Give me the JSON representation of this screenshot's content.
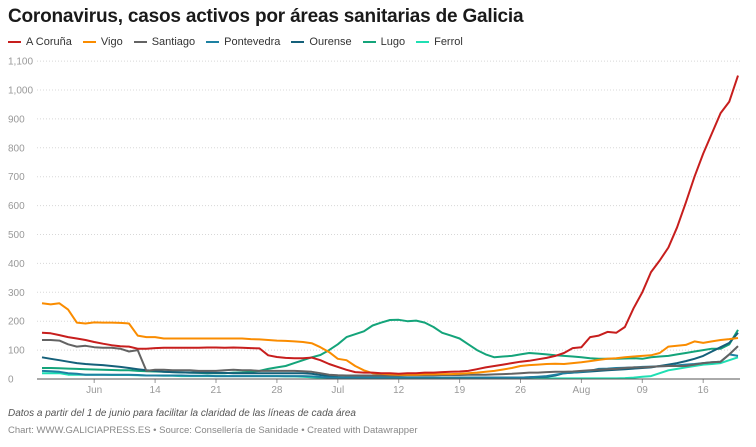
{
  "chart_data": {
    "type": "line",
    "title": "Coronavirus, casos activos por áreas sanitarias de Galicia",
    "x_start": "2020-06-01",
    "x_end": "2020-08-20",
    "x_ticks": [
      {
        "date": "2020-06-07",
        "label": "Jun"
      },
      {
        "date": "2020-06-14",
        "label": "14"
      },
      {
        "date": "2020-06-21",
        "label": "21"
      },
      {
        "date": "2020-06-28",
        "label": "28"
      },
      {
        "date": "2020-07-05",
        "label": "Jul"
      },
      {
        "date": "2020-07-12",
        "label": "12"
      },
      {
        "date": "2020-07-19",
        "label": "19"
      },
      {
        "date": "2020-07-26",
        "label": "26"
      },
      {
        "date": "2020-08-02",
        "label": "Aug"
      },
      {
        "date": "2020-08-09",
        "label": "09"
      },
      {
        "date": "2020-08-16",
        "label": "16"
      }
    ],
    "y_ticks": [
      {
        "value": 1100,
        "label": "1,100"
      },
      {
        "value": 1000,
        "label": "1,000"
      },
      {
        "value": 900,
        "label": "900"
      },
      {
        "value": 800,
        "label": "800"
      },
      {
        "value": 700,
        "label": "700"
      },
      {
        "value": 600,
        "label": "600"
      },
      {
        "value": 500,
        "label": "500"
      },
      {
        "value": 400,
        "label": "400"
      },
      {
        "value": 300,
        "label": "300"
      },
      {
        "value": 200,
        "label": "200"
      },
      {
        "value": 100,
        "label": "100"
      },
      {
        "value": 0,
        "label": "0"
      }
    ],
    "ylim": [
      0,
      1100
    ],
    "grid": true,
    "legend": "top-left",
    "series": [
      {
        "name": "A Coruña",
        "color": "#c71e1d",
        "values": [
          160,
          158,
          152,
          145,
          140,
          135,
          128,
          122,
          117,
          113,
          112,
          105,
          105,
          107,
          108,
          108,
          108,
          108,
          108,
          109,
          109,
          108,
          109,
          108,
          107,
          106,
          82,
          76,
          73,
          72,
          72,
          74,
          65,
          52,
          42,
          32,
          24,
          22,
          22,
          20,
          20,
          18,
          20,
          20,
          22,
          22,
          24,
          25,
          26,
          28,
          34,
          40,
          45,
          50,
          55,
          60,
          63,
          68,
          73,
          80,
          90,
          107,
          110,
          145,
          150,
          163,
          160,
          180,
          245,
          300,
          370,
          410,
          455,
          525,
          610,
          700,
          780,
          850,
          920,
          960,
          1050
        ]
      },
      {
        "name": "Vigo",
        "color": "#fa8c00",
        "values": [
          262,
          258,
          262,
          240,
          195,
          192,
          196,
          195,
          195,
          194,
          192,
          150,
          145,
          145,
          140,
          140,
          140,
          140,
          140,
          140,
          140,
          140,
          140,
          140,
          138,
          137,
          135,
          133,
          132,
          130,
          128,
          124,
          110,
          93,
          70,
          65,
          45,
          30,
          20,
          18,
          16,
          15,
          15,
          15,
          16,
          16,
          17,
          17,
          18,
          20,
          22,
          25,
          28,
          33,
          38,
          45,
          48,
          50,
          52,
          53,
          52,
          55,
          58,
          62,
          66,
          70,
          72,
          75,
          78,
          80,
          82,
          90,
          112,
          115,
          118,
          130,
          125,
          130,
          135,
          138,
          142
        ]
      },
      {
        "name": "Santiago",
        "color": "#636363",
        "values": [
          135,
          135,
          133,
          120,
          112,
          115,
          110,
          108,
          108,
          105,
          95,
          100,
          28,
          32,
          32,
          30,
          30,
          30,
          28,
          28,
          28,
          30,
          32,
          30,
          30,
          28,
          28,
          28,
          28,
          28,
          27,
          25,
          20,
          15,
          13,
          12,
          12,
          12,
          12,
          12,
          12,
          12,
          13,
          13,
          13,
          13,
          14,
          14,
          14,
          15,
          15,
          15,
          16,
          17,
          18,
          20,
          22,
          22,
          24,
          25,
          25,
          26,
          28,
          30,
          32,
          34,
          35,
          38,
          40,
          40,
          42,
          44,
          45,
          45,
          45,
          50,
          55,
          58,
          60,
          85,
          114
        ]
      },
      {
        "name": "Pontevedra",
        "color": "#1d81a2",
        "values": [
          28,
          27,
          25,
          20,
          18,
          15,
          15,
          15,
          15,
          15,
          15,
          14,
          12,
          12,
          12,
          12,
          12,
          11,
          11,
          11,
          10,
          10,
          10,
          10,
          10,
          10,
          10,
          10,
          10,
          10,
          10,
          9,
          7,
          5,
          5,
          5,
          5,
          5,
          5,
          5,
          5,
          5,
          5,
          5,
          5,
          5,
          5,
          5,
          5,
          5,
          5,
          5,
          5,
          5,
          5,
          5,
          6,
          8,
          10,
          15,
          20,
          22,
          25,
          28,
          35,
          36,
          38,
          39,
          40,
          42,
          43,
          44,
          45,
          47,
          50,
          52,
          55,
          58,
          60,
          85,
          80
        ]
      },
      {
        "name": "Ourense",
        "color": "#15607a",
        "values": [
          75,
          70,
          65,
          60,
          55,
          52,
          50,
          48,
          45,
          42,
          38,
          34,
          30,
          28,
          25,
          24,
          23,
          22,
          22,
          22,
          21,
          21,
          20,
          20,
          20,
          20,
          20,
          20,
          20,
          20,
          20,
          18,
          14,
          10,
          7,
          5,
          5,
          5,
          5,
          5,
          5,
          5,
          5,
          5,
          5,
          5,
          5,
          5,
          5,
          5,
          5,
          5,
          5,
          5,
          5,
          5,
          6,
          7,
          8,
          12,
          20,
          22,
          24,
          26,
          28,
          30,
          32,
          34,
          36,
          38,
          40,
          45,
          50,
          55,
          62,
          70,
          80,
          95,
          110,
          125,
          160
        ]
      },
      {
        "name": "Lugo",
        "color": "#14a47a",
        "values": [
          38,
          38,
          37,
          36,
          35,
          34,
          33,
          32,
          31,
          30,
          30,
          28,
          27,
          26,
          25,
          24,
          23,
          22,
          21,
          20,
          20,
          20,
          22,
          23,
          25,
          28,
          35,
          40,
          45,
          55,
          65,
          75,
          83,
          100,
          120,
          145,
          155,
          165,
          185,
          195,
          204,
          205,
          200,
          202,
          195,
          180,
          160,
          150,
          140,
          120,
          100,
          85,
          75,
          78,
          80,
          85,
          90,
          88,
          85,
          82,
          80,
          78,
          75,
          72,
          70,
          70,
          70,
          71,
          72,
          70,
          75,
          78,
          80,
          85,
          90,
          95,
          100,
          105,
          105,
          120,
          170
        ]
      },
      {
        "name": "Ferrol",
        "color": "#1fdfb3",
        "values": [
          20,
          20,
          20,
          15,
          15,
          15,
          15,
          15,
          14,
          14,
          14,
          13,
          12,
          12,
          11,
          11,
          10,
          10,
          10,
          10,
          10,
          10,
          10,
          10,
          10,
          10,
          10,
          10,
          9,
          9,
          8,
          6,
          5,
          3,
          2,
          2,
          2,
          2,
          2,
          2,
          2,
          2,
          2,
          2,
          2,
          2,
          2,
          2,
          2,
          2,
          2,
          2,
          2,
          2,
          2,
          2,
          2,
          2,
          2,
          2,
          2,
          2,
          2,
          2,
          2,
          2,
          2,
          3,
          5,
          8,
          10,
          20,
          30,
          35,
          40,
          45,
          50,
          52,
          55,
          65,
          75
        ]
      }
    ]
  },
  "footer": {
    "note": "Datos a partir del 1 de junio para facilitar la claridad de las líneas de cada área",
    "credit": "Chart: WWW.GALICIAPRESS.ES • Source: Consellería de Sanidade • Created with Datawrapper"
  }
}
